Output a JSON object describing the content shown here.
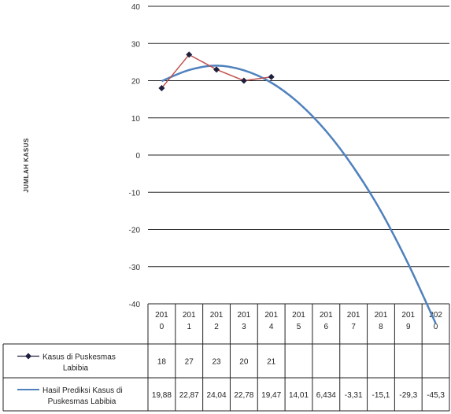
{
  "chart_data": {
    "type": "line",
    "ylabel": "JUMLAH KASUS",
    "ylim": [
      -40,
      40
    ],
    "yticks": [
      "-40",
      "-30",
      "-20",
      "-10",
      "0",
      "10",
      "20",
      "30",
      "40"
    ],
    "categories_display": [
      [
        "201",
        "0"
      ],
      [
        "201",
        "1"
      ],
      [
        "201",
        "2"
      ],
      [
        "201",
        "3"
      ],
      [
        "201",
        "4"
      ],
      [
        "201",
        "5"
      ],
      [
        "201",
        "6"
      ],
      [
        "201",
        "7"
      ],
      [
        "201",
        "8"
      ],
      [
        "201",
        "9"
      ],
      [
        "202",
        "0"
      ]
    ],
    "series": [
      {
        "name_lines": [
          "Kasus di Puskesmas",
          "Labibia"
        ],
        "values": [
          18,
          27,
          23,
          20,
          21,
          null,
          null,
          null,
          null,
          null,
          null
        ],
        "labels": [
          "18",
          "27",
          "23",
          "20",
          "21",
          "",
          "",
          "",
          "",
          "",
          ""
        ],
        "color": "#c0504d",
        "marker_color": "#1f1f3f"
      },
      {
        "name_lines": [
          "Hasil Prediksi Kasus di",
          "Puskesmas Labibia"
        ],
        "values": [
          19.88,
          22.87,
          24.04,
          22.78,
          19.47,
          14.01,
          6.434,
          -3.31,
          -15.1,
          -29.3,
          -45.3
        ],
        "labels": [
          "19,88",
          "22,87",
          "24,04",
          "22,78",
          "19,47",
          "14,01",
          "6,434",
          "-3,31",
          "-15,1",
          "-29,3",
          "-45,3"
        ],
        "color": "#4f81bd"
      }
    ]
  }
}
